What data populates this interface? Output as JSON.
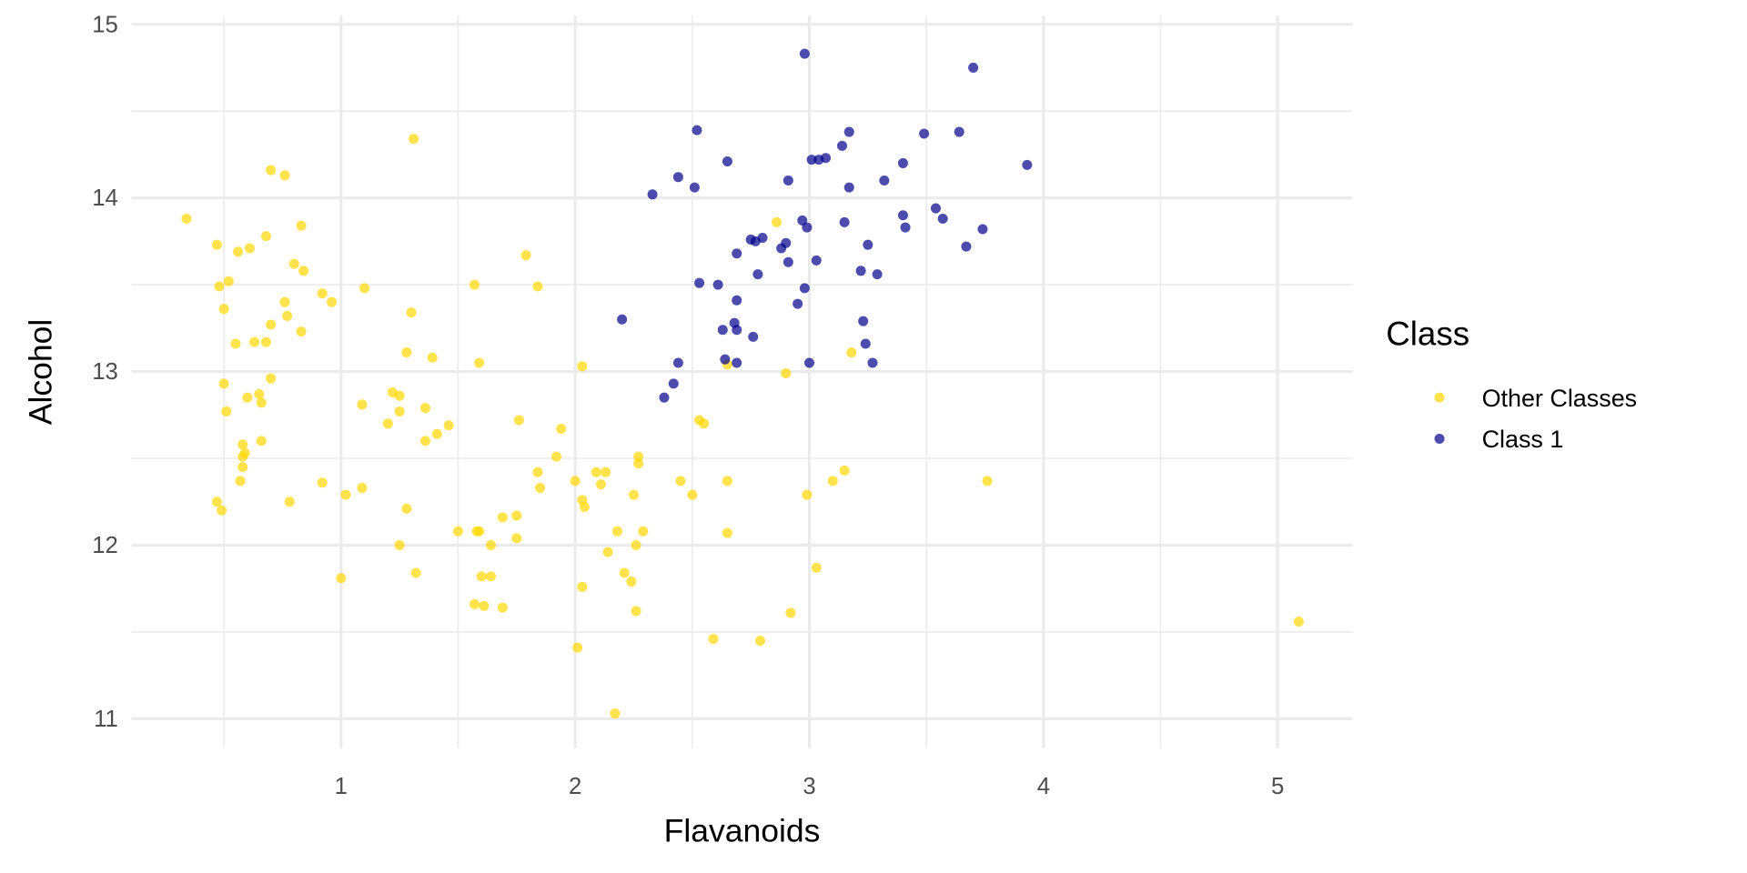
{
  "chart_data": {
    "type": "scatter",
    "xlabel": "Flavanoids",
    "ylabel": "Alcohol",
    "xlim": [
      0.105,
      5.32
    ],
    "ylim": [
      10.83,
      15.05
    ],
    "x_ticks": [
      1,
      2,
      3,
      4,
      5
    ],
    "y_ticks": [
      11,
      12,
      13,
      14,
      15
    ],
    "grid": true,
    "legend": {
      "title": "Class",
      "placement": "right"
    },
    "series": [
      {
        "name": "Other Classes",
        "color": "#FFD700",
        "points": [
          [
            0.34,
            13.88
          ],
          [
            0.47,
            13.73
          ],
          [
            0.56,
            13.69
          ],
          [
            0.61,
            13.71
          ],
          [
            0.68,
            13.78
          ],
          [
            0.7,
            14.16
          ],
          [
            0.76,
            14.13
          ],
          [
            0.83,
            13.84
          ],
          [
            0.8,
            13.62
          ],
          [
            0.84,
            13.58
          ],
          [
            0.48,
            13.49
          ],
          [
            0.52,
            13.52
          ],
          [
            0.5,
            13.36
          ],
          [
            0.76,
            13.4
          ],
          [
            0.77,
            13.32
          ],
          [
            0.7,
            13.27
          ],
          [
            0.83,
            13.23
          ],
          [
            0.55,
            13.16
          ],
          [
            0.63,
            13.17
          ],
          [
            0.68,
            13.17
          ],
          [
            0.92,
            13.45
          ],
          [
            0.96,
            13.4
          ],
          [
            1.1,
            13.48
          ],
          [
            1.31,
            14.34
          ],
          [
            1.3,
            13.34
          ],
          [
            1.28,
            13.11
          ],
          [
            1.39,
            13.08
          ],
          [
            1.57,
            13.5
          ],
          [
            1.79,
            13.67
          ],
          [
            1.84,
            13.49
          ],
          [
            1.59,
            13.05
          ],
          [
            2.03,
            13.03
          ],
          [
            0.5,
            12.93
          ],
          [
            0.7,
            12.96
          ],
          [
            0.6,
            12.85
          ],
          [
            0.65,
            12.87
          ],
          [
            0.66,
            12.82
          ],
          [
            0.51,
            12.77
          ],
          [
            1.09,
            12.81
          ],
          [
            1.22,
            12.88
          ],
          [
            1.25,
            12.86
          ],
          [
            1.25,
            12.77
          ],
          [
            1.36,
            12.79
          ],
          [
            1.2,
            12.7
          ],
          [
            1.46,
            12.69
          ],
          [
            1.41,
            12.64
          ],
          [
            1.36,
            12.6
          ],
          [
            1.76,
            12.72
          ],
          [
            1.94,
            12.67
          ],
          [
            0.66,
            12.6
          ],
          [
            0.58,
            12.58
          ],
          [
            0.58,
            12.51
          ],
          [
            0.59,
            12.53
          ],
          [
            0.58,
            12.45
          ],
          [
            0.57,
            12.37
          ],
          [
            0.47,
            12.25
          ],
          [
            0.49,
            12.2
          ],
          [
            0.78,
            12.25
          ],
          [
            0.92,
            12.36
          ],
          [
            1.02,
            12.29
          ],
          [
            1.09,
            12.33
          ],
          [
            1.28,
            12.21
          ],
          [
            1.92,
            12.51
          ],
          [
            1.84,
            12.42
          ],
          [
            1.85,
            12.33
          ],
          [
            2.0,
            12.37
          ],
          [
            2.09,
            12.42
          ],
          [
            2.13,
            12.42
          ],
          [
            2.11,
            12.35
          ],
          [
            2.03,
            12.26
          ],
          [
            2.04,
            12.22
          ],
          [
            2.27,
            12.51
          ],
          [
            2.27,
            12.47
          ],
          [
            2.25,
            12.29
          ],
          [
            2.45,
            12.37
          ],
          [
            2.5,
            12.29
          ],
          [
            2.65,
            12.37
          ],
          [
            2.53,
            12.72
          ],
          [
            2.55,
            12.7
          ],
          [
            2.65,
            13.04
          ],
          [
            2.86,
            13.86
          ],
          [
            2.9,
            12.99
          ],
          [
            3.18,
            13.11
          ],
          [
            2.99,
            12.29
          ],
          [
            3.1,
            12.37
          ],
          [
            3.15,
            12.43
          ],
          [
            3.76,
            12.37
          ],
          [
            1.5,
            12.08
          ],
          [
            1.58,
            12.08
          ],
          [
            1.59,
            12.08
          ],
          [
            1.69,
            12.16
          ],
          [
            1.75,
            12.17
          ],
          [
            1.75,
            12.04
          ],
          [
            1.25,
            12.0
          ],
          [
            1.64,
            12.0
          ],
          [
            1.0,
            11.81
          ],
          [
            1.32,
            11.84
          ],
          [
            1.6,
            11.82
          ],
          [
            1.64,
            11.82
          ],
          [
            1.57,
            11.66
          ],
          [
            1.61,
            11.65
          ],
          [
            1.69,
            11.64
          ],
          [
            2.18,
            12.08
          ],
          [
            2.29,
            12.08
          ],
          [
            2.26,
            12.0
          ],
          [
            2.14,
            11.96
          ],
          [
            2.65,
            12.07
          ],
          [
            2.03,
            11.76
          ],
          [
            2.21,
            11.84
          ],
          [
            2.24,
            11.79
          ],
          [
            2.26,
            11.62
          ],
          [
            3.03,
            11.87
          ],
          [
            2.92,
            11.61
          ],
          [
            2.01,
            11.41
          ],
          [
            2.59,
            11.46
          ],
          [
            2.79,
            11.45
          ],
          [
            2.17,
            11.03
          ],
          [
            5.09,
            11.56
          ]
        ]
      },
      {
        "name": "Class 1",
        "color": "#00008B",
        "points": [
          [
            2.98,
            14.83
          ],
          [
            3.7,
            14.75
          ],
          [
            2.52,
            14.39
          ],
          [
            3.17,
            14.38
          ],
          [
            3.49,
            14.37
          ],
          [
            3.64,
            14.38
          ],
          [
            3.14,
            14.3
          ],
          [
            3.01,
            14.22
          ],
          [
            3.04,
            14.22
          ],
          [
            3.07,
            14.23
          ],
          [
            2.65,
            14.21
          ],
          [
            3.4,
            14.2
          ],
          [
            3.93,
            14.19
          ],
          [
            2.44,
            14.12
          ],
          [
            2.91,
            14.1
          ],
          [
            3.32,
            14.1
          ],
          [
            2.51,
            14.06
          ],
          [
            3.17,
            14.06
          ],
          [
            2.33,
            14.02
          ],
          [
            3.4,
            13.9
          ],
          [
            3.54,
            13.94
          ],
          [
            3.57,
            13.88
          ],
          [
            2.97,
            13.87
          ],
          [
            2.99,
            13.83
          ],
          [
            3.15,
            13.86
          ],
          [
            3.41,
            13.83
          ],
          [
            3.74,
            13.82
          ],
          [
            2.75,
            13.76
          ],
          [
            2.8,
            13.77
          ],
          [
            2.77,
            13.75
          ],
          [
            2.9,
            13.74
          ],
          [
            2.88,
            13.71
          ],
          [
            3.25,
            13.73
          ],
          [
            3.67,
            13.72
          ],
          [
            2.69,
            13.68
          ],
          [
            3.03,
            13.64
          ],
          [
            2.91,
            13.63
          ],
          [
            2.78,
            13.56
          ],
          [
            3.22,
            13.58
          ],
          [
            3.29,
            13.56
          ],
          [
            2.53,
            13.51
          ],
          [
            2.61,
            13.5
          ],
          [
            2.98,
            13.48
          ],
          [
            2.69,
            13.41
          ],
          [
            2.95,
            13.39
          ],
          [
            2.2,
            13.3
          ],
          [
            3.23,
            13.29
          ],
          [
            2.68,
            13.28
          ],
          [
            2.63,
            13.24
          ],
          [
            2.69,
            13.24
          ],
          [
            2.76,
            13.2
          ],
          [
            3.24,
            13.16
          ],
          [
            2.64,
            13.07
          ],
          [
            2.44,
            13.05
          ],
          [
            2.69,
            13.05
          ],
          [
            3.0,
            13.05
          ],
          [
            3.27,
            13.05
          ],
          [
            2.42,
            12.93
          ],
          [
            2.38,
            12.85
          ]
        ]
      }
    ]
  }
}
